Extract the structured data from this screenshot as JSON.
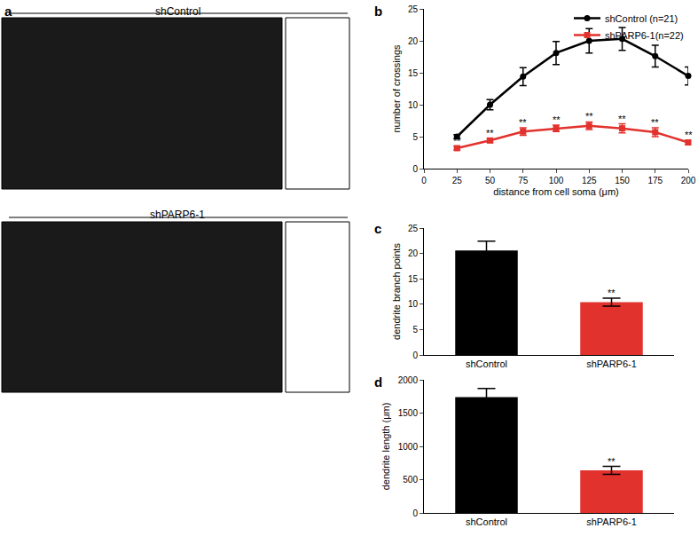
{
  "panel_a": {
    "panel": "a",
    "conditions": [
      "shControl",
      "shPARP6-1"
    ]
  },
  "chart_data": [
    {
      "panel": "b",
      "type": "line",
      "x": [
        25,
        50,
        75,
        100,
        125,
        150,
        175,
        200
      ],
      "xlabel": "distance from cell soma (μm)",
      "ylabel": "number of crossings",
      "xlim": [
        0,
        200
      ],
      "xticks": [
        0,
        25,
        50,
        75,
        100,
        125,
        150,
        175,
        200
      ],
      "ylim": [
        0,
        25
      ],
      "yticks": [
        0,
        5,
        10,
        15,
        20,
        25
      ],
      "grid": false,
      "legend": "top right",
      "series": [
        {
          "name": "shControl (n=21)",
          "color": "#000000",
          "marker": "circle",
          "values": [
            5.0,
            10.0,
            14.4,
            18.1,
            20.0,
            20.3,
            17.6,
            14.5
          ],
          "errors": [
            0.3,
            0.8,
            1.4,
            1.8,
            1.9,
            1.8,
            1.7,
            1.4
          ]
        },
        {
          "name": "shPARP6-1(n=22)",
          "color": "#e2322d",
          "marker": "square",
          "values": [
            3.2,
            4.4,
            5.8,
            6.3,
            6.7,
            6.3,
            5.7,
            4.1
          ],
          "errors": [
            0.3,
            0.3,
            0.6,
            0.5,
            0.6,
            0.7,
            0.7,
            0.3
          ],
          "annotations": [
            "**",
            "**",
            "**",
            "**",
            "**",
            "**",
            "**",
            "**"
          ]
        }
      ]
    },
    {
      "panel": "c",
      "type": "bar",
      "categories": [
        "shControl",
        "shPARP6-1"
      ],
      "values": [
        20.6,
        10.4
      ],
      "errors": [
        1.8,
        0.8
      ],
      "colors": [
        "#000000",
        "#e2322d"
      ],
      "ylabel": "dendrite branch points",
      "ylim": [
        0,
        25
      ],
      "yticks": [
        0,
        5,
        10,
        15,
        20,
        25
      ],
      "grid": false,
      "annotations": [
        null,
        "**"
      ]
    },
    {
      "panel": "d",
      "type": "bar",
      "categories": [
        "shControl",
        "shPARP6-1"
      ],
      "values": [
        1740,
        640
      ],
      "errors": [
        130,
        60
      ],
      "colors": [
        "#000000",
        "#e2322d"
      ],
      "ylabel": "dendrite length (μm)",
      "ylim": [
        0,
        2000
      ],
      "yticks": [
        0,
        500,
        1000,
        1500,
        2000
      ],
      "grid": false,
      "annotations": [
        null,
        "**"
      ]
    }
  ]
}
